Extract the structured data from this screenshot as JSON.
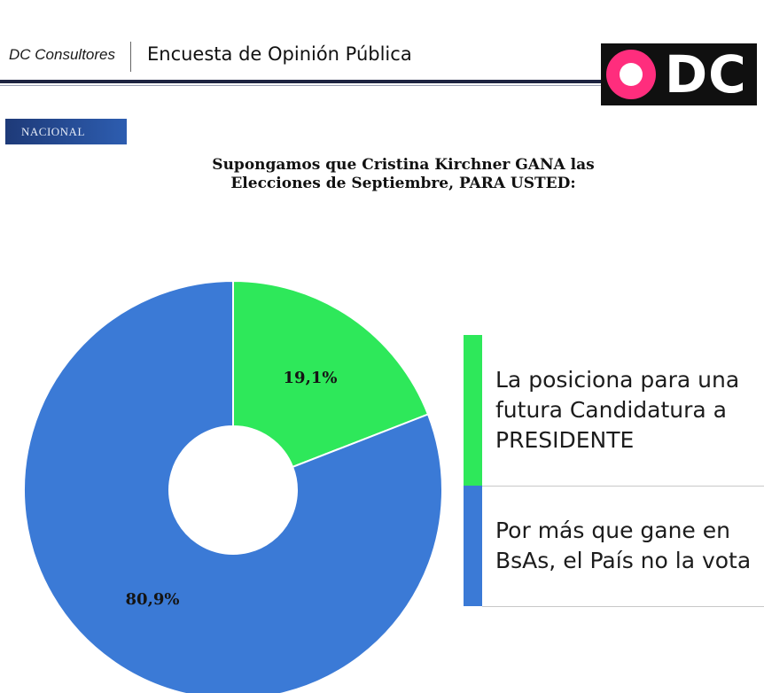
{
  "header": {
    "brand": "DC Consultores",
    "survey_title": "Encuesta de Opinión Pública",
    "logo_text": "DC"
  },
  "badge": {
    "label": "NACIONAL"
  },
  "colors": {
    "green": "#2ee85a",
    "blue": "#3b7ad6",
    "header_rule": "#1d2340",
    "logo_pink": "#ff2d7d"
  },
  "chart_data": {
    "type": "pie",
    "title_lines": [
      "Supongamos que Cristina Kirchner GANA las",
      "Elecciones de Septiembre, PARA USTED:"
    ],
    "slices": [
      {
        "value": 19.1,
        "label": "19,1%",
        "legend_lines": [
          "La posiciona para una",
          "futura Candidatura a",
          "PRESIDENTE"
        ],
        "color": "#2ee85a"
      },
      {
        "value": 80.9,
        "label": "80,9%",
        "legend_lines": [
          "Por más que gane en",
          "BsAs, el País no la vota"
        ],
        "color": "#3b7ad6"
      }
    ],
    "donut": true,
    "legend_position": "right"
  }
}
